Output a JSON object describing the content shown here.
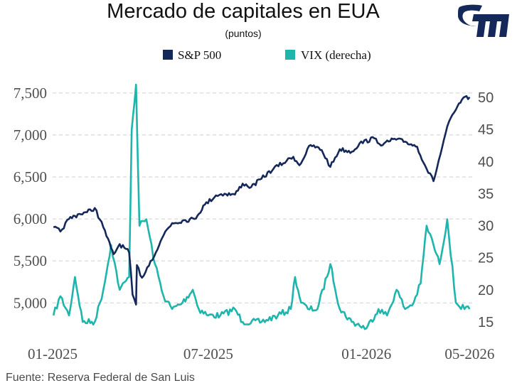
{
  "colors": {
    "sp500": "#14285a",
    "vix": "#1eb5ad",
    "logo": "#14285a"
  },
  "logo": {
    "icon": "institution-logo"
  },
  "chart_data": {
    "type": "line",
    "title": "Mercado de capitales en EUA",
    "subtitle": "(puntos)",
    "source": "Fuente: Reserva Federal de San Luis",
    "legend_position": "top",
    "grid": true,
    "x_ticks": [
      "01-2025",
      "07-2025",
      "01-2026",
      "05-2026"
    ],
    "xlim": [
      "2025-01-01",
      "2026-05-04"
    ],
    "y_left": {
      "ylim": [
        4850,
        7600
      ],
      "ticks": [
        "5,000",
        "5,500",
        "6,000",
        "6,500",
        "7,000",
        "7,500"
      ]
    },
    "y_right": {
      "ylim": [
        14,
        52
      ],
      "ticks": [
        "15",
        "20",
        "25",
        "30",
        "35",
        "40",
        "45",
        "50"
      ]
    },
    "series": [
      {
        "name": "S&P 500",
        "axis": "left",
        "dates": [
          "2025-01-02",
          "2025-01-10",
          "2025-01-20",
          "2025-02-01",
          "2025-02-10",
          "2025-02-19",
          "2025-03-01",
          "2025-03-10",
          "2025-03-13",
          "2025-03-20",
          "2025-03-31",
          "2025-04-04",
          "2025-04-08",
          "2025-04-09",
          "2025-04-15",
          "2025-04-25",
          "2025-05-01",
          "2025-05-12",
          "2025-05-20",
          "2025-06-01",
          "2025-06-15",
          "2025-06-27",
          "2025-07-10",
          "2025-07-20",
          "2025-08-01",
          "2025-08-10",
          "2025-08-20",
          "2025-09-01",
          "2025-09-15",
          "2025-09-30",
          "2025-10-08",
          "2025-10-15",
          "2025-10-28",
          "2025-11-10",
          "2025-11-20",
          "2025-12-01",
          "2025-12-15",
          "2025-12-24",
          "2026-01-10",
          "2026-01-20",
          "2026-02-01",
          "2026-02-15",
          "2026-03-01",
          "2026-03-10",
          "2026-03-20",
          "2026-03-30",
          "2026-04-05",
          "2026-04-15",
          "2026-04-22",
          "2026-05-01"
        ],
        "values": [
          5900,
          5850,
          6000,
          6060,
          6080,
          6130,
          5900,
          5650,
          5580,
          5700,
          5600,
          5100,
          4980,
          5450,
          5300,
          5500,
          5600,
          5850,
          5950,
          5980,
          6000,
          6170,
          6280,
          6300,
          6290,
          6420,
          6380,
          6480,
          6600,
          6690,
          6740,
          6640,
          6880,
          6820,
          6620,
          6830,
          6800,
          6900,
          6960,
          6880,
          6950,
          6920,
          6860,
          6640,
          6450,
          6850,
          7100,
          7300,
          7420,
          7450
        ]
      },
      {
        "name": "VIX (derecha)",
        "axis": "right",
        "dates": [
          "2025-01-02",
          "2025-01-10",
          "2025-01-20",
          "2025-01-27",
          "2025-02-05",
          "2025-02-19",
          "2025-03-01",
          "2025-03-10",
          "2025-03-20",
          "2025-03-31",
          "2025-04-03",
          "2025-04-08",
          "2025-04-12",
          "2025-04-20",
          "2025-04-30",
          "2025-05-10",
          "2025-05-20",
          "2025-06-01",
          "2025-06-13",
          "2025-06-20",
          "2025-07-01",
          "2025-07-15",
          "2025-08-01",
          "2025-08-10",
          "2025-09-01",
          "2025-09-20",
          "2025-10-05",
          "2025-10-10",
          "2025-10-17",
          "2025-10-25",
          "2025-11-05",
          "2025-11-20",
          "2025-12-01",
          "2025-12-15",
          "2026-01-01",
          "2026-01-15",
          "2026-01-25",
          "2026-02-05",
          "2026-02-15",
          "2026-02-25",
          "2026-03-05",
          "2026-03-12",
          "2026-03-20",
          "2026-03-27",
          "2026-04-05",
          "2026-04-15",
          "2026-04-25",
          "2026-05-01"
        ],
        "values": [
          16,
          19,
          16,
          22,
          15,
          15,
          20,
          27,
          20,
          22,
          45,
          52,
          30,
          31,
          24,
          19,
          17,
          18,
          20,
          17,
          16,
          16,
          17,
          15,
          15,
          16,
          17,
          22,
          18,
          17,
          17,
          24,
          17,
          15,
          14,
          17,
          16,
          20,
          17,
          18,
          21,
          30,
          27,
          24,
          31,
          18,
          17,
          17
        ]
      }
    ]
  }
}
